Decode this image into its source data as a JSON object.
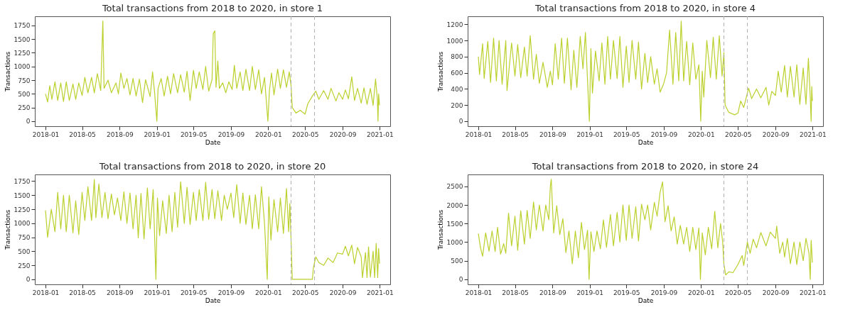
{
  "chart_data": [
    {
      "type": "line",
      "title": "Total transactions from 2018 to 2020, in store 1",
      "xlabel": "Date",
      "ylabel": "Transactions",
      "xlim": [
        "2017-11-27",
        "2021-02-04"
      ],
      "ylim": [
        -91,
        1915
      ],
      "xticks": [
        "2018-01",
        "2018-05",
        "2018-09",
        "2019-01",
        "2019-05",
        "2019-09",
        "2020-01",
        "2020-05",
        "2020-09",
        "2021-01"
      ],
      "yticks": [
        0,
        250,
        500,
        750,
        1000,
        1250,
        1500,
        1750
      ],
      "ref_lines": [
        {
          "axis": "x",
          "value": "2020-03-16",
          "color": "#b0b0b0",
          "line_style": "dashed"
        },
        {
          "axis": "x",
          "value": "2020-06-01",
          "color": "#b0b0b0",
          "line_style": "dashed"
        }
      ],
      "x": [
        "2018-01-01",
        "2018-01-08",
        "2018-01-15",
        "2018-01-22",
        "2018-02-01",
        "2018-02-10",
        "2018-02-20",
        "2018-03-01",
        "2018-03-10",
        "2018-03-20",
        "2018-04-01",
        "2018-04-10",
        "2018-04-20",
        "2018-05-01",
        "2018-05-10",
        "2018-05-20",
        "2018-06-01",
        "2018-06-10",
        "2018-06-20",
        "2018-07-01",
        "2018-07-08",
        "2018-07-12",
        "2018-07-25",
        "2018-08-05",
        "2018-08-20",
        "2018-08-28",
        "2018-09-05",
        "2018-09-15",
        "2018-09-25",
        "2018-10-05",
        "2018-10-15",
        "2018-10-25",
        "2018-11-05",
        "2018-11-15",
        "2018-11-25",
        "2018-12-10",
        "2018-12-18",
        "2018-12-25",
        "2019-01-01",
        "2019-01-05",
        "2019-01-15",
        "2019-01-25",
        "2019-02-05",
        "2019-02-15",
        "2019-02-25",
        "2019-03-10",
        "2019-03-20",
        "2019-04-01",
        "2019-04-10",
        "2019-04-20",
        "2019-05-01",
        "2019-05-10",
        "2019-05-20",
        "2019-06-01",
        "2019-06-10",
        "2019-06-20",
        "2019-07-01",
        "2019-07-05",
        "2019-07-10",
        "2019-07-14",
        "2019-07-20",
        "2019-07-25",
        "2019-08-05",
        "2019-08-15",
        "2019-08-25",
        "2019-09-05",
        "2019-09-12",
        "2019-09-20",
        "2019-10-01",
        "2019-10-10",
        "2019-10-20",
        "2019-11-01",
        "2019-11-10",
        "2019-11-20",
        "2019-12-01",
        "2019-12-10",
        "2019-12-20",
        "2019-12-31",
        "2020-01-05",
        "2020-01-12",
        "2020-01-20",
        "2020-02-01",
        "2020-02-10",
        "2020-02-20",
        "2020-03-01",
        "2020-03-10",
        "2020-03-16",
        "2020-03-20",
        "2020-04-01",
        "2020-04-15",
        "2020-05-01",
        "2020-05-10",
        "2020-05-25",
        "2020-06-05",
        "2020-06-15",
        "2020-07-01",
        "2020-07-15",
        "2020-07-25",
        "2020-08-10",
        "2020-08-20",
        "2020-09-01",
        "2020-09-10",
        "2020-09-20",
        "2020-10-01",
        "2020-10-10",
        "2020-10-20",
        "2020-11-01",
        "2020-11-10",
        "2020-11-20",
        "2020-12-01",
        "2020-12-10",
        "2020-12-18",
        "2020-12-24",
        "2020-12-26",
        "2020-12-28",
        "2020-12-31"
      ],
      "series": [
        {
          "color": "#bcd02d",
          "values": [
            500,
            350,
            650,
            400,
            720,
            380,
            700,
            360,
            720,
            380,
            680,
            400,
            700,
            470,
            800,
            520,
            800,
            520,
            870,
            560,
            1830,
            600,
            750,
            520,
            700,
            500,
            880,
            600,
            780,
            480,
            780,
            460,
            770,
            340,
            760,
            450,
            900,
            500,
            0,
            600,
            780,
            460,
            820,
            500,
            870,
            520,
            850,
            530,
            910,
            380,
            930,
            600,
            900,
            580,
            1000,
            550,
            760,
            1600,
            1650,
            620,
            1100,
            600,
            700,
            520,
            720,
            580,
            1020,
            600,
            900,
            560,
            950,
            560,
            1000,
            580,
            940,
            500,
            800,
            0,
            550,
            880,
            480,
            950,
            600,
            940,
            620,
            900,
            650,
            250,
            150,
            200,
            130,
            320,
            460,
            550,
            400,
            560,
            400,
            600,
            370,
            520,
            400,
            570,
            410,
            810,
            380,
            600,
            330,
            610,
            310,
            600,
            290,
            770,
            400,
            0,
            500,
            290
          ]
        }
      ]
    },
    {
      "type": "line",
      "title": "Total transactions from 2018 to 2020, in store 4",
      "xlabel": "Date",
      "ylabel": "Transactions",
      "xlim": [
        "2017-11-27",
        "2021-02-04"
      ],
      "ylim": [
        -62,
        1300
      ],
      "xticks": [
        "2018-01",
        "2018-05",
        "2018-09",
        "2019-01",
        "2019-05",
        "2019-09",
        "2020-01",
        "2020-05",
        "2020-09",
        "2021-01"
      ],
      "yticks": [
        0,
        200,
        400,
        600,
        800,
        1000,
        1200
      ],
      "ref_lines": [
        {
          "axis": "x",
          "value": "2020-03-16",
          "color": "#b0b0b0",
          "line_style": "dashed"
        },
        {
          "axis": "x",
          "value": "2020-06-01",
          "color": "#b0b0b0",
          "line_style": "dashed"
        }
      ],
      "x": [
        "2018-01-01",
        "2018-01-05",
        "2018-01-15",
        "2018-01-20",
        "2018-02-01",
        "2018-02-10",
        "2018-02-20",
        "2018-03-01",
        "2018-03-10",
        "2018-03-20",
        "2018-04-01",
        "2018-04-05",
        "2018-04-20",
        "2018-05-01",
        "2018-05-10",
        "2018-05-20",
        "2018-06-01",
        "2018-06-10",
        "2018-06-20",
        "2018-07-01",
        "2018-07-10",
        "2018-07-20",
        "2018-08-01",
        "2018-08-15",
        "2018-08-25",
        "2018-09-01",
        "2018-09-10",
        "2018-09-20",
        "2018-10-01",
        "2018-10-10",
        "2018-10-20",
        "2018-11-01",
        "2018-11-10",
        "2018-11-20",
        "2018-12-01",
        "2018-12-10",
        "2018-12-18",
        "2018-12-25",
        "2018-12-31",
        "2019-01-05",
        "2019-01-10",
        "2019-01-20",
        "2019-02-01",
        "2019-02-10",
        "2019-02-20",
        "2019-03-01",
        "2019-03-10",
        "2019-03-20",
        "2019-04-01",
        "2019-04-10",
        "2019-04-20",
        "2019-05-01",
        "2019-05-10",
        "2019-05-20",
        "2019-06-01",
        "2019-06-10",
        "2019-06-20",
        "2019-07-01",
        "2019-07-10",
        "2019-07-20",
        "2019-08-01",
        "2019-08-10",
        "2019-08-20",
        "2019-09-01",
        "2019-09-10",
        "2019-09-20",
        "2019-10-01",
        "2019-10-10",
        "2019-10-20",
        "2019-10-28",
        "2019-11-05",
        "2019-11-15",
        "2019-11-25",
        "2019-12-05",
        "2019-12-15",
        "2019-12-25",
        "2019-12-31",
        "2020-01-05",
        "2020-01-10",
        "2020-01-20",
        "2020-02-01",
        "2020-02-10",
        "2020-02-20",
        "2020-03-01",
        "2020-03-10",
        "2020-03-16",
        "2020-03-20",
        "2020-04-01",
        "2020-04-20",
        "2020-05-01",
        "2020-05-10",
        "2020-05-20",
        "2020-06-01",
        "2020-06-05",
        "2020-06-15",
        "2020-07-01",
        "2020-07-15",
        "2020-08-01",
        "2020-08-10",
        "2020-08-20",
        "2020-09-01",
        "2020-09-10",
        "2020-09-20",
        "2020-10-01",
        "2020-10-10",
        "2020-10-20",
        "2020-11-01",
        "2020-11-10",
        "2020-11-20",
        "2020-12-01",
        "2020-12-10",
        "2020-12-18",
        "2020-12-24",
        "2020-12-27",
        "2020-12-29",
        "2020-12-31"
      ],
      "series": [
        {
          "color": "#bcd02d",
          "values": [
            800,
            580,
            960,
            530,
            990,
            480,
            1030,
            500,
            1000,
            460,
            1000,
            380,
            970,
            560,
            950,
            540,
            920,
            560,
            1060,
            520,
            830,
            470,
            730,
            420,
            620,
            450,
            960,
            520,
            1030,
            470,
            1030,
            390,
            880,
            420,
            1050,
            650,
            1100,
            500,
            0,
            900,
            350,
            870,
            500,
            970,
            460,
            1050,
            520,
            1000,
            530,
            1050,
            420,
            930,
            480,
            1000,
            520,
            980,
            400,
            840,
            480,
            800,
            460,
            650,
            360,
            470,
            600,
            1130,
            460,
            1100,
            500,
            1240,
            500,
            990,
            450,
            970,
            520,
            700,
            0,
            620,
            300,
            1000,
            540,
            1040,
            520,
            1060,
            560,
            850,
            200,
            110,
            80,
            100,
            250,
            170,
            350,
            410,
            280,
            400,
            290,
            420,
            200,
            370,
            320,
            620,
            360,
            690,
            300,
            680,
            300,
            700,
            210,
            660,
            210,
            780,
            300,
            0,
            430,
            250
          ]
        }
      ]
    },
    {
      "type": "line",
      "title": "Total transactions from 2018 to 2020, in store 20",
      "xlabel": "Date",
      "ylabel": "Transactions",
      "xlim": [
        "2017-11-27",
        "2021-02-04"
      ],
      "ylim": [
        -89,
        1870
      ],
      "xticks": [
        "2018-01",
        "2018-05",
        "2018-09",
        "2019-01",
        "2019-05",
        "2019-09",
        "2020-01",
        "2020-05",
        "2020-09",
        "2021-01"
      ],
      "yticks": [
        0,
        250,
        500,
        750,
        1000,
        1250,
        1500,
        1750
      ],
      "ref_lines": [
        {
          "axis": "x",
          "value": "2020-03-16",
          "color": "#b0b0b0",
          "line_style": "dashed"
        },
        {
          "axis": "x",
          "value": "2020-06-01",
          "color": "#b0b0b0",
          "line_style": "dashed"
        }
      ],
      "x": [
        "2018-01-01",
        "2018-01-05",
        "2018-01-08",
        "2018-01-20",
        "2018-02-01",
        "2018-02-10",
        "2018-02-20",
        "2018-03-01",
        "2018-03-10",
        "2018-03-20",
        "2018-04-01",
        "2018-04-10",
        "2018-04-20",
        "2018-05-01",
        "2018-05-10",
        "2018-05-20",
        "2018-06-01",
        "2018-06-10",
        "2018-06-15",
        "2018-06-25",
        "2018-07-05",
        "2018-07-15",
        "2018-07-25",
        "2018-08-05",
        "2018-08-15",
        "2018-08-25",
        "2018-09-05",
        "2018-09-15",
        "2018-09-25",
        "2018-10-05",
        "2018-10-15",
        "2018-10-25",
        "2018-11-01",
        "2018-11-10",
        "2018-11-20",
        "2018-12-01",
        "2018-12-10",
        "2018-12-20",
        "2018-12-29",
        "2019-01-03",
        "2019-01-10",
        "2019-01-20",
        "2019-02-01",
        "2019-02-10",
        "2019-02-20",
        "2019-03-01",
        "2019-03-10",
        "2019-03-20",
        "2019-04-01",
        "2019-04-10",
        "2019-04-20",
        "2019-05-01",
        "2019-05-10",
        "2019-05-20",
        "2019-06-01",
        "2019-06-10",
        "2019-06-20",
        "2019-07-01",
        "2019-07-10",
        "2019-07-20",
        "2019-08-01",
        "2019-08-10",
        "2019-08-20",
        "2019-09-01",
        "2019-09-10",
        "2019-09-20",
        "2019-10-01",
        "2019-10-10",
        "2019-10-20",
        "2019-11-01",
        "2019-11-10",
        "2019-11-20",
        "2019-12-01",
        "2019-12-10",
        "2019-12-20",
        "2019-12-29",
        "2020-01-03",
        "2020-01-10",
        "2020-01-20",
        "2020-02-01",
        "2020-02-10",
        "2020-02-20",
        "2020-03-01",
        "2020-03-08",
        "2020-03-12",
        "2020-03-16",
        "2020-03-20",
        "2020-04-01",
        "2020-05-01",
        "2020-05-25",
        "2020-05-28",
        "2020-06-05",
        "2020-06-15",
        "2020-07-01",
        "2020-07-15",
        "2020-08-01",
        "2020-08-15",
        "2020-09-01",
        "2020-09-10",
        "2020-09-20",
        "2020-10-01",
        "2020-10-10",
        "2020-10-20",
        "2020-11-01",
        "2020-11-05",
        "2020-11-15",
        "2020-11-20",
        "2020-11-25",
        "2020-12-01",
        "2020-12-10",
        "2020-12-15",
        "2020-12-20",
        "2020-12-25",
        "2020-12-28",
        "2020-12-31"
      ],
      "series": [
        {
          "color": "#bcd02d",
          "values": [
            1230,
            950,
            750,
            1250,
            850,
            1550,
            900,
            1500,
            850,
            1500,
            830,
            1400,
            800,
            1550,
            1050,
            1650,
            1050,
            1780,
            1100,
            1700,
            1100,
            1550,
            1080,
            1520,
            1150,
            1450,
            1050,
            1560,
            1000,
            1540,
            900,
            1500,
            740,
            1530,
            720,
            1630,
            900,
            1600,
            0,
            1450,
            780,
            1400,
            820,
            1500,
            850,
            1550,
            930,
            1740,
            1000,
            1640,
            980,
            1550,
            1050,
            1600,
            1050,
            1730,
            1070,
            1600,
            1080,
            1580,
            1050,
            1500,
            1250,
            1540,
            1100,
            1690,
            1000,
            1540,
            980,
            1500,
            900,
            1510,
            900,
            1650,
            1000,
            0,
            1470,
            700,
            1420,
            850,
            1450,
            820,
            1620,
            850,
            1350,
            700,
            0,
            0,
            0,
            0,
            200,
            400,
            300,
            250,
            380,
            300,
            470,
            450,
            590,
            420,
            610,
            280,
            570,
            400,
            30,
            480,
            30,
            580,
            40,
            500,
            30,
            640,
            30,
            550,
            280
          ]
        }
      ]
    },
    {
      "type": "line",
      "title": "Total transactions from 2018 to 2020, in store 24",
      "xlabel": "Date",
      "ylabel": "Transactions",
      "xlim": [
        "2017-11-27",
        "2021-02-04"
      ],
      "ylim": [
        -135,
        2820
      ],
      "xticks": [
        "2018-01",
        "2018-05",
        "2018-09",
        "2019-01",
        "2019-05",
        "2019-09",
        "2020-01",
        "2020-05",
        "2020-09",
        "2021-01"
      ],
      "yticks": [
        0,
        500,
        1000,
        1500,
        2000,
        2500
      ],
      "ref_lines": [
        {
          "axis": "x",
          "value": "2020-03-16",
          "color": "#b0b0b0",
          "line_style": "dashed"
        },
        {
          "axis": "x",
          "value": "2020-06-01",
          "color": "#b0b0b0",
          "line_style": "dashed"
        }
      ],
      "x": [
        "2018-01-01",
        "2018-01-08",
        "2018-01-15",
        "2018-01-25",
        "2018-02-05",
        "2018-02-15",
        "2018-02-25",
        "2018-03-05",
        "2018-03-15",
        "2018-03-25",
        "2018-04-01",
        "2018-04-10",
        "2018-04-20",
        "2018-05-01",
        "2018-05-10",
        "2018-05-20",
        "2018-06-01",
        "2018-06-10",
        "2018-06-20",
        "2018-07-01",
        "2018-07-10",
        "2018-07-20",
        "2018-08-01",
        "2018-08-10",
        "2018-08-20",
        "2018-08-25",
        "2018-08-28",
        "2018-09-05",
        "2018-09-15",
        "2018-09-25",
        "2018-10-05",
        "2018-10-15",
        "2018-10-25",
        "2018-11-05",
        "2018-11-15",
        "2018-11-25",
        "2018-12-05",
        "2018-12-15",
        "2018-12-25",
        "2018-12-30",
        "2019-01-05",
        "2019-01-15",
        "2019-01-25",
        "2019-02-05",
        "2019-02-15",
        "2019-02-25",
        "2019-03-10",
        "2019-03-20",
        "2019-04-01",
        "2019-04-10",
        "2019-04-20",
        "2019-05-01",
        "2019-05-10",
        "2019-05-20",
        "2019-06-01",
        "2019-06-10",
        "2019-06-20",
        "2019-07-01",
        "2019-07-10",
        "2019-07-20",
        "2019-08-01",
        "2019-08-10",
        "2019-08-20",
        "2019-08-28",
        "2019-09-05",
        "2019-09-15",
        "2019-09-25",
        "2019-10-05",
        "2019-10-15",
        "2019-10-25",
        "2019-11-05",
        "2019-11-15",
        "2019-11-25",
        "2019-12-05",
        "2019-12-15",
        "2019-12-25",
        "2019-12-30",
        "2020-01-05",
        "2020-01-15",
        "2020-01-25",
        "2020-02-05",
        "2020-02-15",
        "2020-02-25",
        "2020-03-05",
        "2020-03-12",
        "2020-03-16",
        "2020-03-22",
        "2020-04-01",
        "2020-04-15",
        "2020-05-01",
        "2020-05-15",
        "2020-05-20",
        "2020-06-01",
        "2020-06-10",
        "2020-06-20",
        "2020-07-01",
        "2020-07-15",
        "2020-08-01",
        "2020-08-15",
        "2020-09-01",
        "2020-09-05",
        "2020-09-15",
        "2020-09-25",
        "2020-10-01",
        "2020-10-10",
        "2020-10-20",
        "2020-11-01",
        "2020-11-10",
        "2020-11-20",
        "2020-12-01",
        "2020-12-10",
        "2020-12-20",
        "2020-12-24",
        "2020-12-27",
        "2020-12-31"
      ],
      "series": [
        {
          "color": "#bcd02d",
          "values": [
            1230,
            850,
            620,
            1250,
            760,
            1300,
            750,
            1400,
            680,
            960,
            700,
            1780,
            900,
            1700,
            780,
            1840,
            950,
            1850,
            1100,
            2080,
            1330,
            2000,
            1300,
            2000,
            1600,
            2500,
            2690,
            1250,
            1980,
            1200,
            1630,
            720,
            1300,
            420,
            1300,
            580,
            1530,
            800,
            1320,
            0,
            1280,
            750,
            1300,
            820,
            1600,
            860,
            1740,
            900,
            1800,
            1000,
            2000,
            1050,
            2000,
            1100,
            1950,
            1030,
            2020,
            1600,
            2000,
            1330,
            2070,
            1700,
            2350,
            2620,
            1550,
            1980,
            1300,
            1680,
            950,
            1450,
            950,
            1400,
            750,
            1400,
            800,
            1380,
            0,
            1250,
            660,
            1400,
            820,
            1830,
            850,
            1500,
            1000,
            400,
            120,
            200,
            180,
            400,
            640,
            370,
            1000,
            700,
            1080,
            850,
            1260,
            900,
            1270,
            1100,
            1430,
            700,
            1000,
            600,
            1100,
            420,
            1000,
            400,
            1000,
            500,
            1100,
            700,
            0,
            1050,
            450
          ]
        }
      ]
    }
  ]
}
